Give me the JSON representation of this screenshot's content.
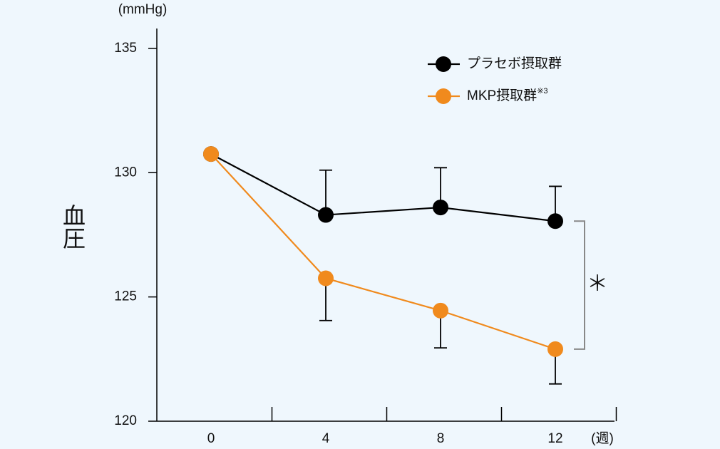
{
  "chart_data": {
    "type": "line",
    "y_label": "血圧",
    "y_unit": "(mmHg)",
    "x_unit": "(週)",
    "categories": [
      "0",
      "4",
      "8",
      "12"
    ],
    "series": [
      {
        "name": "プラセボ摂取群",
        "color": "#000000",
        "values": [
          130.75,
          128.3,
          128.6,
          128.05
        ],
        "error": [
          null,
          1.8,
          1.6,
          1.4
        ],
        "error_direction": "up"
      },
      {
        "name": "MKP摂取群",
        "note": "※3",
        "color": "#f08a1d",
        "values": [
          130.75,
          125.75,
          124.45,
          122.9
        ],
        "error": [
          null,
          1.7,
          1.5,
          1.4
        ],
        "error_direction": "down"
      }
    ],
    "significance": {
      "text": "＊",
      "category": 3
    },
    "ylim": [
      120,
      135.8
    ],
    "yticks": [
      120,
      125,
      130,
      135
    ]
  }
}
